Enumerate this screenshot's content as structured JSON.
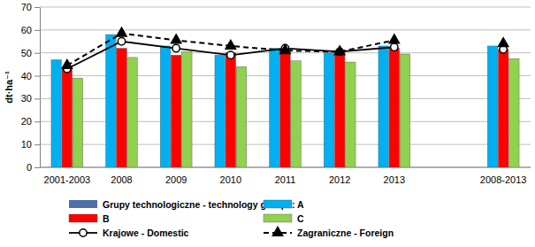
{
  "chart_data": {
    "type": "bar",
    "y_label": "dt·ha⁻¹",
    "legend_title": "Grupy technologiczne - technology groups:",
    "categories": [
      "2001-2003",
      "2008",
      "2009",
      "2010",
      "2011",
      "2012",
      "2013",
      null,
      "2008-2013"
    ],
    "ylim": [
      0,
      70
    ],
    "yticks": [
      0,
      10,
      20,
      30,
      40,
      50,
      60,
      70
    ],
    "grid": true,
    "legend": "bottom",
    "series": [
      {
        "name": "A",
        "type": "bar",
        "color": "#00b0f0",
        "values": [
          47,
          58,
          53,
          49,
          52,
          50,
          53,
          null,
          53
        ]
      },
      {
        "name": "B",
        "type": "bar",
        "color": "#ff0000",
        "values": [
          43,
          52,
          49,
          50,
          51,
          51,
          52,
          null,
          51.5
        ]
      },
      {
        "name": "C",
        "type": "bar",
        "color": "#92d050",
        "values": [
          39,
          48,
          50.5,
          44,
          46.5,
          46,
          49.5,
          null,
          47.5
        ]
      },
      {
        "name": "Krajowe - Domestic",
        "type": "line",
        "color": "#000000",
        "marker": "circle",
        "line_style": "solid",
        "values": [
          43,
          55,
          52,
          49,
          52,
          50.5,
          52.5,
          null,
          51.5
        ]
      },
      {
        "name": "Zagraniczne - Foreign",
        "type": "line",
        "color": "#000000",
        "marker": "triangle",
        "line_style": "dashed",
        "values": [
          44.5,
          58.5,
          55.5,
          53,
          51,
          50.5,
          55.5,
          null,
          54
        ]
      }
    ]
  }
}
